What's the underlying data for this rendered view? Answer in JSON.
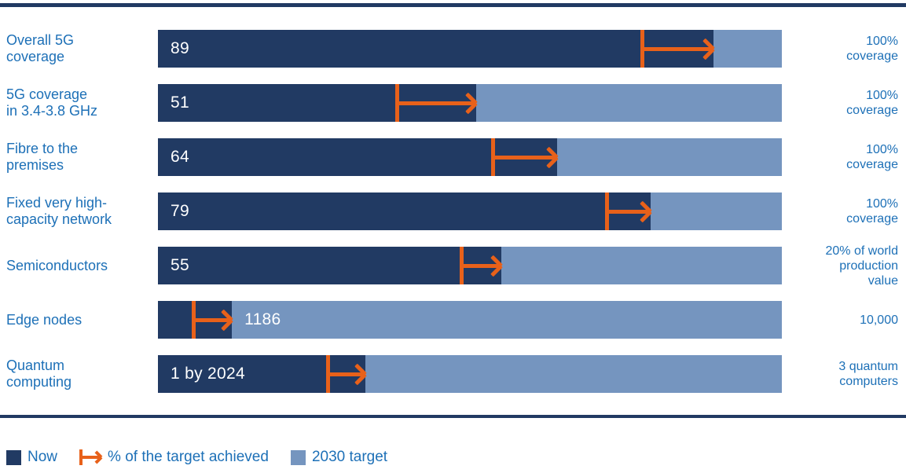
{
  "colors": {
    "navy": "#213A63",
    "light_blue": "#7595BF",
    "orange": "#E8611A",
    "label_blue": "#1D70B7",
    "bar_value_text": "#FFFFFF"
  },
  "chart_data": {
    "type": "bar",
    "title": "",
    "orientation": "horizontal",
    "description": "Progress toward 2030 digital targets: dark segment = current value (Now), light segment = remainder to 2030 target, orange arrow = % of the target achieved",
    "legend_position": "bottom",
    "rows": [
      {
        "label": "Overall 5G\ncoverage",
        "value_label": "89",
        "now_value": 89,
        "target_value": 100,
        "now_pct": 89,
        "arrow_start_pct": 77.3,
        "target_label": "100%\ncoverage",
        "value_position": "now"
      },
      {
        "label": "5G coverage\nin 3.4-3.8 GHz",
        "value_label": "51",
        "now_value": 51,
        "target_value": 100,
        "now_pct": 51,
        "arrow_start_pct": 38.0,
        "target_label": "100%\ncoverage",
        "value_position": "now"
      },
      {
        "label": "Fibre to the\npremises",
        "value_label": "64",
        "now_value": 64,
        "target_value": 100,
        "now_pct": 64,
        "arrow_start_pct": 53.4,
        "target_label": "100%\ncoverage",
        "value_position": "now"
      },
      {
        "label": "Fixed very high-\ncapacity network",
        "value_label": "79",
        "now_value": 79,
        "target_value": 100,
        "now_pct": 79,
        "arrow_start_pct": 71.7,
        "target_label": "100%\ncoverage",
        "value_position": "now"
      },
      {
        "label": "Semiconductors",
        "value_label": "55",
        "now_value": 55,
        "target_value": 20,
        "now_pct": 55,
        "arrow_start_pct": 48.4,
        "target_label": "20% of world\nproduction\nvalue",
        "value_position": "now"
      },
      {
        "label": "Edge nodes",
        "value_label": "1186",
        "now_value": 1186,
        "target_value": 10000,
        "now_pct": 11.86,
        "arrow_start_pct": 5.4,
        "target_label": "10,000",
        "value_position": "target"
      },
      {
        "label": "Quantum\ncomputing",
        "value_label": "1 by 2024",
        "now_value": 1,
        "target_value": 3,
        "now_pct": 33.3,
        "arrow_start_pct": 27.0,
        "target_label": "3 quantum\ncomputers",
        "value_position": "now"
      }
    ],
    "legend": [
      {
        "swatch": "now",
        "label": "Now"
      },
      {
        "swatch": "arrow",
        "label": "% of the target achieved"
      },
      {
        "swatch": "target",
        "label": "2030 target"
      }
    ]
  }
}
